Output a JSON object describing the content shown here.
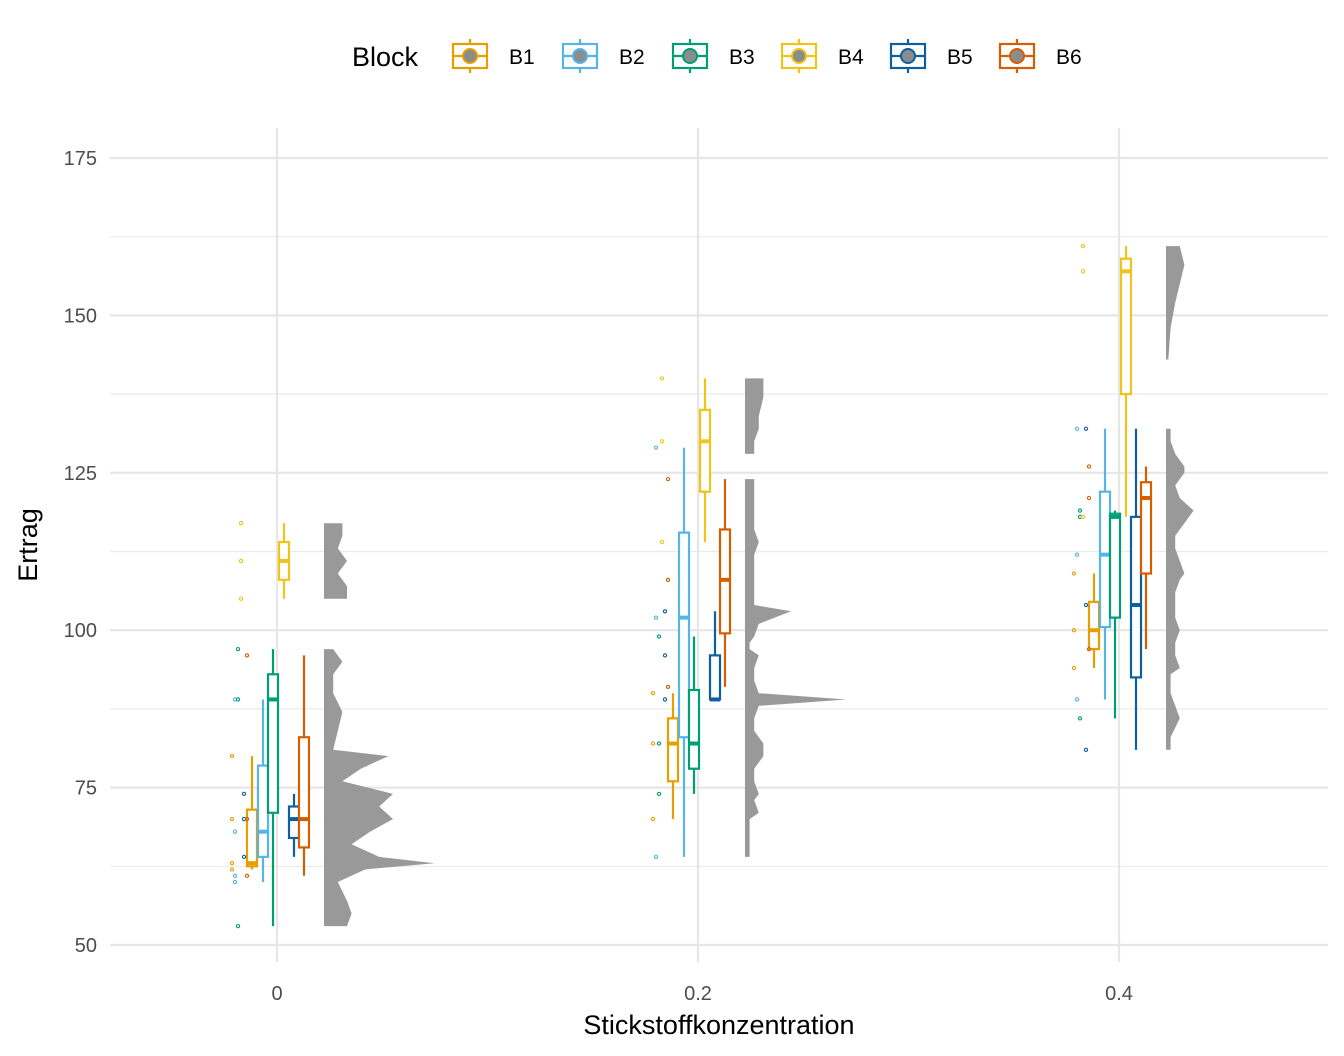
{
  "chart_data": {
    "type": "raincloud",
    "title": "",
    "xlabel": "Stickstoffkonzentration",
    "ylabel": "Ertrag",
    "ylim": [
      50,
      175
    ],
    "y_ticks": [
      50,
      75,
      100,
      125,
      150,
      175
    ],
    "x_categories": [
      "0",
      "0.2",
      "0.4"
    ],
    "grid": true,
    "legend": {
      "title": "Block",
      "position": "top"
    },
    "series": [
      {
        "name": "B1",
        "color": "#E69F00"
      },
      {
        "name": "B2",
        "color": "#56B4E9"
      },
      {
        "name": "B3",
        "color": "#009E73"
      },
      {
        "name": "B4",
        "color": "#F0C419"
      },
      {
        "name": "B5",
        "color": "#0F5FA0"
      },
      {
        "name": "B6",
        "color": "#D55E00"
      }
    ],
    "groups": [
      {
        "x": "0",
        "boxes": [
          {
            "block": "B1",
            "min": 62,
            "q1": 62.5,
            "median": 63,
            "q3": 71.5,
            "max": 80,
            "points": [
              62,
              63,
              70,
              80
            ]
          },
          {
            "block": "B2",
            "min": 60,
            "q1": 64,
            "median": 68,
            "q3": 78.5,
            "max": 89,
            "points": [
              60,
              61,
              68,
              89
            ]
          },
          {
            "block": "B3",
            "min": 53,
            "q1": 71,
            "median": 89,
            "q3": 93,
            "max": 97,
            "points": [
              53,
              89,
              97
            ]
          },
          {
            "block": "B4",
            "min": 105,
            "q1": 108,
            "median": 111,
            "q3": 114,
            "max": 117,
            "points": [
              105,
              111,
              117
            ]
          },
          {
            "block": "B5",
            "min": 64,
            "q1": 67,
            "median": 70,
            "q3": 72,
            "max": 74,
            "points": [
              64,
              70,
              74
            ]
          },
          {
            "block": "B6",
            "min": 61,
            "q1": 65.5,
            "median": 70,
            "q3": 83,
            "max": 96,
            "points": [
              61,
              70,
              96
            ]
          }
        ],
        "density": [
          [
            53,
            5
          ],
          [
            55,
            6
          ],
          [
            57,
            5
          ],
          [
            60,
            3
          ],
          [
            62,
            9
          ],
          [
            63,
            24
          ],
          [
            64,
            12
          ],
          [
            66,
            6
          ],
          [
            68,
            10
          ],
          [
            70,
            15
          ],
          [
            72,
            12
          ],
          [
            74,
            15
          ],
          [
            76,
            4
          ],
          [
            78,
            8
          ],
          [
            80,
            14
          ],
          [
            81,
            2
          ],
          [
            84,
            3
          ],
          [
            87,
            4
          ],
          [
            90,
            2
          ],
          [
            93,
            2
          ],
          [
            95,
            4
          ],
          [
            97,
            2
          ],
          [
            99,
            null
          ],
          [
            105,
            5
          ],
          [
            107,
            5
          ],
          [
            109,
            3
          ],
          [
            111,
            5
          ],
          [
            113,
            3
          ],
          [
            115,
            4
          ],
          [
            117,
            4
          ]
        ]
      },
      {
        "x": "0.2",
        "boxes": [
          {
            "block": "B1",
            "min": 70,
            "q1": 76,
            "median": 82,
            "q3": 86,
            "max": 90,
            "points": [
              70,
              82,
              90
            ]
          },
          {
            "block": "B2",
            "min": 64,
            "q1": 83,
            "median": 102,
            "q3": 115.5,
            "max": 129,
            "points": [
              64,
              102,
              129
            ]
          },
          {
            "block": "B3",
            "min": 74,
            "q1": 78,
            "median": 82,
            "q3": 90.5,
            "max": 99,
            "points": [
              74,
              82,
              99
            ]
          },
          {
            "block": "B4",
            "min": 114,
            "q1": 122,
            "median": 130,
            "q3": 135,
            "max": 140,
            "points": [
              114,
              130,
              140
            ]
          },
          {
            "block": "B5",
            "min": 89,
            "q1": 89,
            "median": 89,
            "q3": 96,
            "max": 103,
            "points": [
              89,
              96,
              103
            ]
          },
          {
            "block": "B6",
            "min": 91,
            "q1": 99.5,
            "median": 108,
            "q3": 116,
            "max": 124,
            "points": [
              91,
              108,
              124
            ]
          }
        ],
        "density": [
          [
            64,
            1
          ],
          [
            66,
            1
          ],
          [
            70,
            1
          ],
          [
            71,
            3
          ],
          [
            73,
            2
          ],
          [
            74,
            3
          ],
          [
            76,
            2
          ],
          [
            78,
            2
          ],
          [
            80,
            4
          ],
          [
            82,
            4
          ],
          [
            84,
            2
          ],
          [
            86,
            2
          ],
          [
            88,
            3
          ],
          [
            89,
            22
          ],
          [
            90,
            3
          ],
          [
            92,
            2
          ],
          [
            94,
            2
          ],
          [
            96,
            3
          ],
          [
            97,
            1
          ],
          [
            98,
            1
          ],
          [
            99,
            2
          ],
          [
            101,
            3
          ],
          [
            103,
            10
          ],
          [
            104,
            2
          ],
          [
            107,
            2
          ],
          [
            110,
            2
          ],
          [
            112,
            2
          ],
          [
            114,
            3
          ],
          [
            116,
            2
          ],
          [
            118,
            2
          ],
          [
            120,
            2
          ],
          [
            122,
            2
          ],
          [
            124,
            2
          ],
          [
            125,
            null
          ],
          [
            128,
            2
          ],
          [
            130,
            2
          ],
          [
            132,
            3
          ],
          [
            134,
            3
          ],
          [
            137,
            4
          ],
          [
            140,
            4
          ]
        ]
      },
      {
        "x": "0.4",
        "boxes": [
          {
            "block": "B1",
            "min": 94,
            "q1": 97,
            "median": 100,
            "q3": 104.5,
            "max": 109,
            "points": [
              94,
              100,
              109
            ]
          },
          {
            "block": "B2",
            "min": 89,
            "q1": 100.5,
            "median": 112,
            "q3": 122,
            "max": 132,
            "points": [
              89,
              112,
              132
            ]
          },
          {
            "block": "B3",
            "min": 86,
            "q1": 102,
            "median": 118,
            "q3": 118.5,
            "max": 119,
            "points": [
              86,
              118,
              119
            ]
          },
          {
            "block": "B4",
            "min": 118,
            "q1": 137.5,
            "median": 157,
            "q3": 159,
            "max": 161,
            "points": [
              118,
              157,
              161
            ]
          },
          {
            "block": "B5",
            "min": 81,
            "q1": 92.5,
            "median": 104,
            "q3": 118,
            "max": 132,
            "points": [
              81,
              104,
              132
            ]
          },
          {
            "block": "B6",
            "min": 97,
            "q1": 109,
            "median": 121,
            "q3": 123.5,
            "max": 126,
            "points": [
              97,
              121,
              126
            ]
          }
        ],
        "density": [
          [
            81,
            1
          ],
          [
            83,
            1
          ],
          [
            86,
            3
          ],
          [
            88,
            2
          ],
          [
            90,
            1
          ],
          [
            93,
            1
          ],
          [
            94,
            3
          ],
          [
            96,
            2
          ],
          [
            98,
            2
          ],
          [
            100,
            3
          ],
          [
            102,
            2
          ],
          [
            104,
            2
          ],
          [
            106,
            2
          ],
          [
            108,
            3
          ],
          [
            109,
            4
          ],
          [
            111,
            3
          ],
          [
            113,
            2
          ],
          [
            115,
            2
          ],
          [
            117,
            4
          ],
          [
            118,
            5
          ],
          [
            119,
            6
          ],
          [
            121,
            3
          ],
          [
            123,
            2
          ],
          [
            125,
            4
          ],
          [
            126,
            4
          ],
          [
            128,
            2
          ],
          [
            130,
            1
          ],
          [
            132,
            1
          ],
          [
            133,
            null
          ],
          [
            143,
            0.5
          ],
          [
            148,
            1
          ],
          [
            152,
            2
          ],
          [
            155,
            3
          ],
          [
            158,
            4
          ],
          [
            161,
            3
          ]
        ]
      }
    ]
  }
}
